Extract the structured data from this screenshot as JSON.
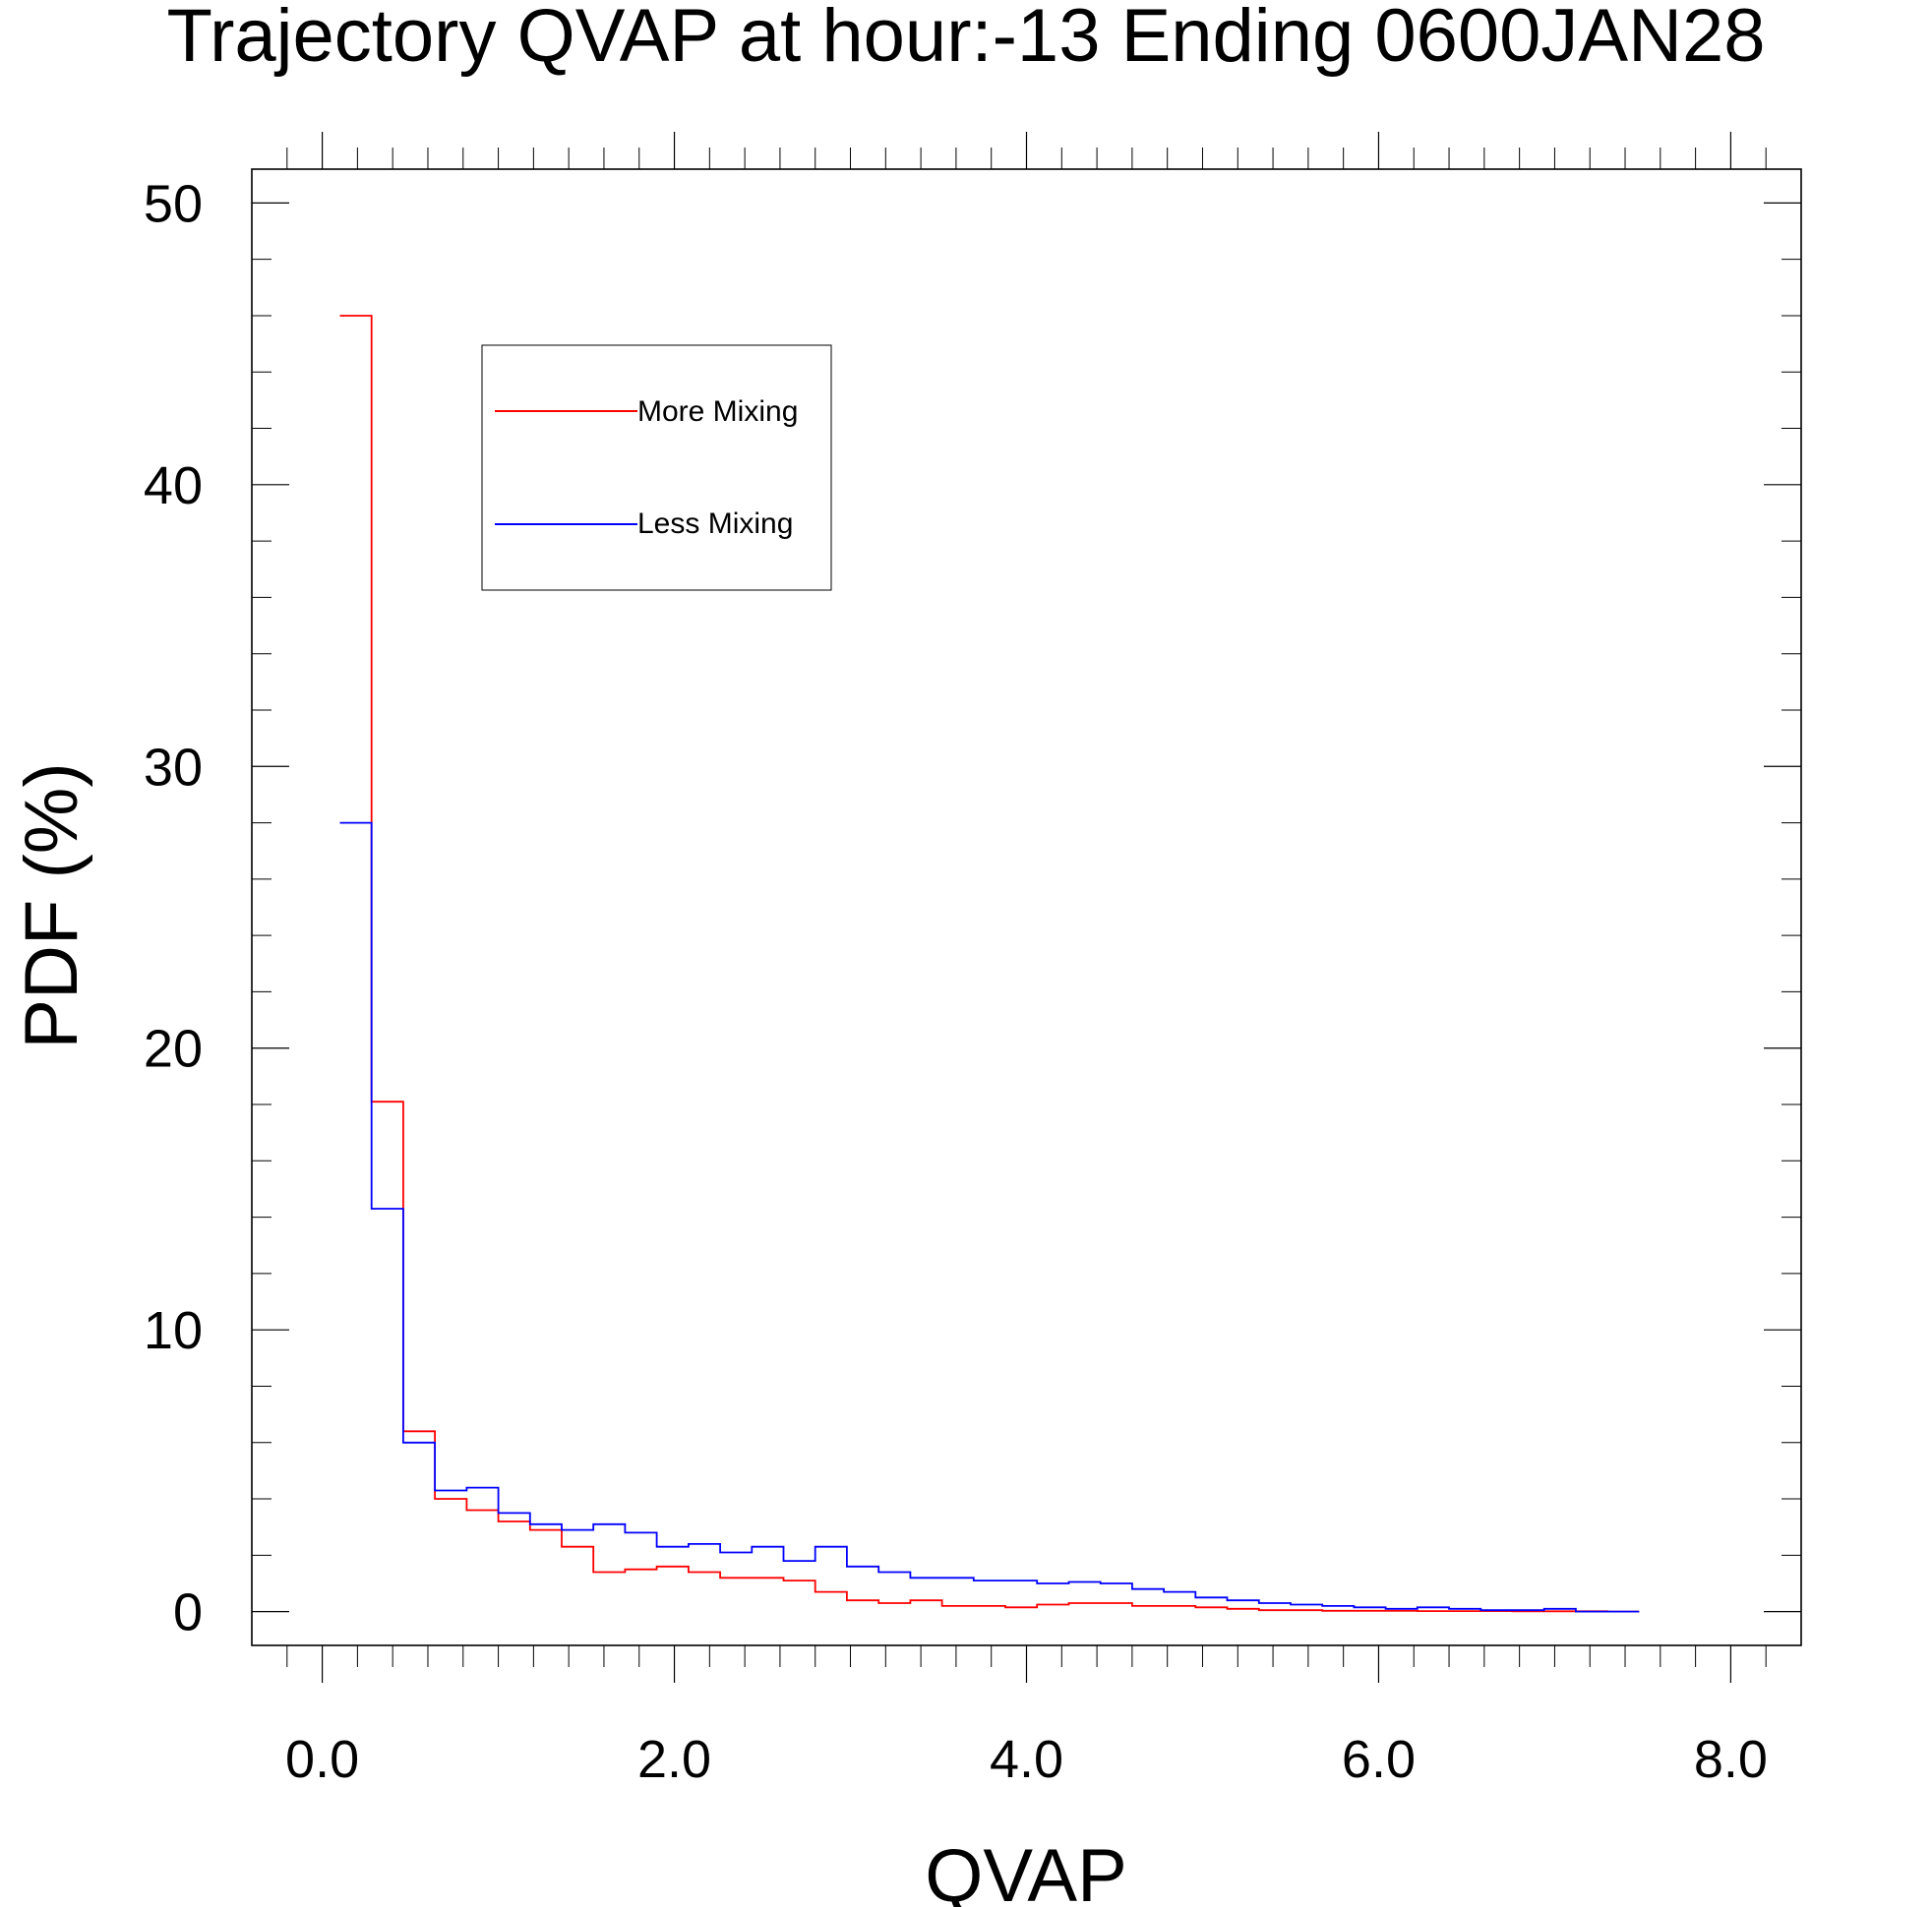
{
  "chart_data": {
    "type": "line",
    "step": true,
    "title": "Trajectory QVAP at hour:-13 Ending 0600JAN28",
    "xlabel": "QVAP",
    "ylabel": "PDF (%)",
    "xlim": [
      -0.4,
      8.4
    ],
    "ylim": [
      -1.2,
      51.2
    ],
    "xticks": [
      0,
      2,
      4,
      6,
      8
    ],
    "xtick_labels": [
      "0.0",
      "2.0",
      "4.0",
      "6.0",
      "8.0"
    ],
    "yticks": [
      0,
      10,
      20,
      30,
      40,
      50
    ],
    "ytick_labels": [
      "0",
      "10",
      "20",
      "30",
      "40",
      "50"
    ],
    "grid": false,
    "legend_position": "top-left",
    "x": [
      0.1,
      0.28,
      0.46,
      0.64,
      0.82,
      1.0,
      1.18,
      1.36,
      1.54,
      1.72,
      1.9,
      2.08,
      2.26,
      2.44,
      2.62,
      2.8,
      2.98,
      3.16,
      3.34,
      3.52,
      3.7,
      3.88,
      4.06,
      4.24,
      4.42,
      4.6,
      4.78,
      4.96,
      5.14,
      5.32,
      5.5,
      5.68,
      5.86,
      6.04,
      6.22,
      6.4,
      6.58,
      6.76,
      6.94,
      7.12,
      7.3
    ],
    "series": [
      {
        "name": "More Mixing",
        "color": "#ff0000",
        "values": [
          46.0,
          18.1,
          6.4,
          4.0,
          3.6,
          3.2,
          2.9,
          2.3,
          1.4,
          1.5,
          1.6,
          1.4,
          1.2,
          1.2,
          1.1,
          0.7,
          0.4,
          0.3,
          0.4,
          0.2,
          0.2,
          0.15,
          0.25,
          0.3,
          0.3,
          0.2,
          0.2,
          0.15,
          0.1,
          0.05,
          0.05,
          0.03,
          0.03,
          0.03,
          0.02,
          0.02,
          0.02,
          0.01,
          0.01,
          0.01,
          0.0
        ]
      },
      {
        "name": "Less Mixing",
        "color": "#0000ff",
        "values": [
          28.0,
          14.3,
          6.0,
          4.3,
          4.4,
          3.5,
          3.1,
          2.9,
          3.1,
          2.8,
          2.3,
          2.4,
          2.1,
          2.3,
          1.8,
          2.3,
          1.6,
          1.4,
          1.2,
          1.2,
          1.1,
          1.1,
          1.0,
          1.05,
          1.0,
          0.8,
          0.7,
          0.5,
          0.4,
          0.3,
          0.25,
          0.2,
          0.15,
          0.1,
          0.15,
          0.1,
          0.05,
          0.05,
          0.1,
          0.0,
          0.0
        ]
      }
    ]
  }
}
